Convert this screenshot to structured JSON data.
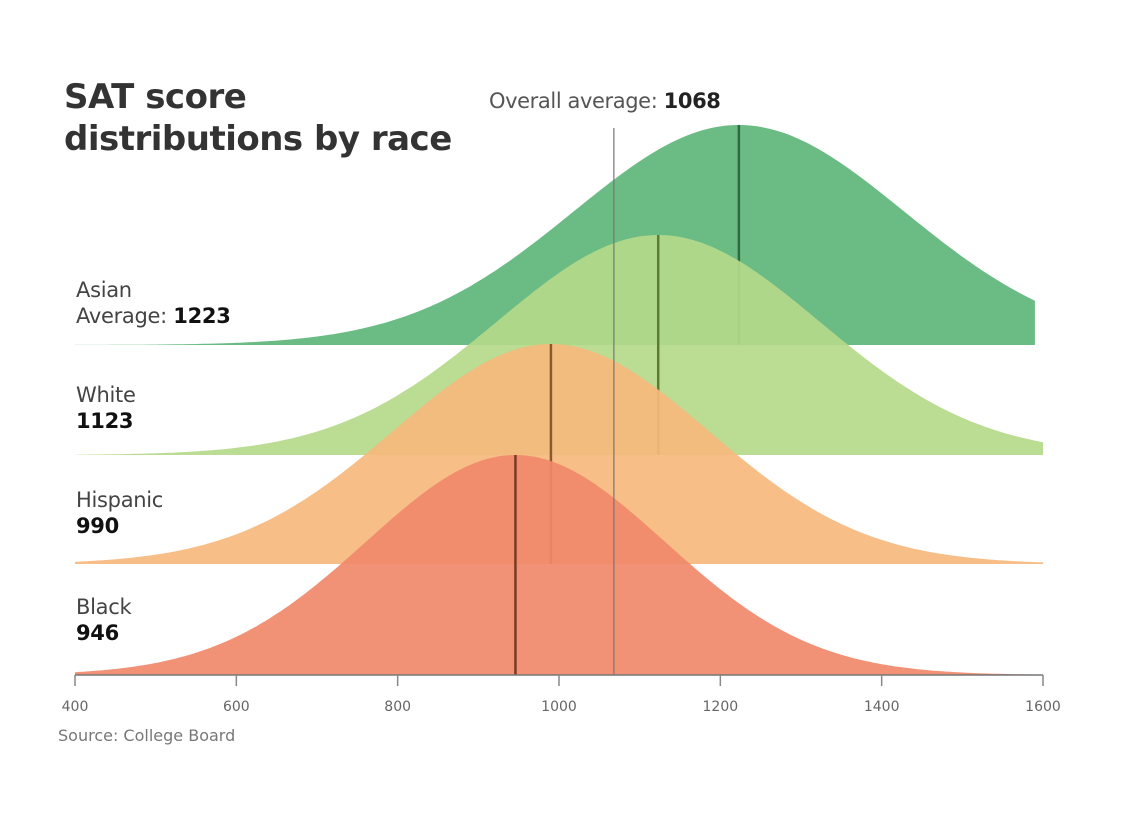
{
  "chart_data": {
    "type": "area",
    "subtype": "ridgeline-density",
    "title": "SAT score distributions by race",
    "title_lines": [
      "SAT score",
      "distributions by race"
    ],
    "xlabel": "",
    "ylabel": "",
    "xlim": [
      400,
      1600
    ],
    "x_ticks": [
      400,
      600,
      800,
      1000,
      1200,
      1400,
      1600
    ],
    "x_tick_labels": [
      "400",
      "600",
      "800",
      "1000",
      "1200",
      "1400",
      "1600"
    ],
    "grid": false,
    "overall_average": {
      "label": "Overall average:",
      "value": 1068,
      "value_label": "1068"
    },
    "series": [
      {
        "name": "Asian",
        "label_line1": "Asian",
        "label_line2_prefix": "Average: ",
        "average": 1223,
        "average_label": "1223",
        "sd": 205,
        "x_end": 1590,
        "color": "#5db57a"
      },
      {
        "name": "White",
        "label_line1": "White",
        "label_line2_prefix": "",
        "average": 1123,
        "average_label": "1123",
        "sd": 200,
        "x_end": 1600,
        "color": "#b5d98a"
      },
      {
        "name": "Hispanic",
        "label_line1": "Hispanic",
        "label_line2_prefix": "",
        "average": 990,
        "average_label": "990",
        "sd": 195,
        "x_end": 1600,
        "color": "#f6b97d"
      },
      {
        "name": "Black",
        "label_line1": "Black",
        "label_line2_prefix": "",
        "average": 946,
        "average_label": "946",
        "sd": 185,
        "x_end": 1600,
        "color": "#f0886a"
      }
    ],
    "source": "Source: College Board"
  }
}
